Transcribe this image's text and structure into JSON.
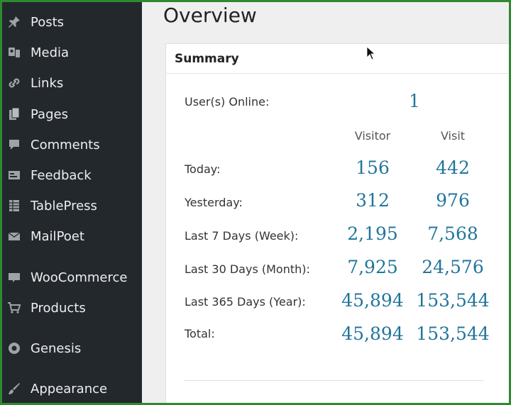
{
  "sidebar": {
    "items": [
      {
        "label": "Posts",
        "icon": "pin-icon"
      },
      {
        "label": "Media",
        "icon": "media-icon"
      },
      {
        "label": "Links",
        "icon": "link-icon"
      },
      {
        "label": "Pages",
        "icon": "pages-icon"
      },
      {
        "label": "Comments",
        "icon": "comment-icon"
      },
      {
        "label": "Feedback",
        "icon": "feedback-icon"
      },
      {
        "label": "TablePress",
        "icon": "table-icon"
      },
      {
        "label": "MailPoet",
        "icon": "mail-icon"
      },
      {
        "label": "WooCommerce",
        "icon": "woocommerce-icon"
      },
      {
        "label": "Products",
        "icon": "cart-icon"
      },
      {
        "label": "Genesis",
        "icon": "genesis-icon"
      },
      {
        "label": "Appearance",
        "icon": "brush-icon"
      }
    ]
  },
  "main": {
    "title": "Overview",
    "summary": {
      "title": "Summary",
      "users_online_label": "User(s) Online:",
      "users_online_value": "1",
      "columns": {
        "visitor": "Visitor",
        "visit": "Visit"
      },
      "rows": [
        {
          "label": "Today:",
          "visitor": "156",
          "visit": "442"
        },
        {
          "label": "Yesterday:",
          "visitor": "312",
          "visit": "976"
        },
        {
          "label": "Last 7 Days (Week):",
          "visitor": "2,195",
          "visit": "7,568"
        },
        {
          "label": "Last 30 Days (Month):",
          "visitor": "7,925",
          "visit": "24,576"
        },
        {
          "label": "Last 365 Days (Year):",
          "visitor": "45,894",
          "visit": "153,544"
        },
        {
          "label": "Total:",
          "visitor": "45,894",
          "visit": "153,544"
        }
      ]
    }
  },
  "colors": {
    "sidebar_bg": "#23282d",
    "value_blue": "#21759b",
    "frame_green": "#2f8a2f"
  }
}
